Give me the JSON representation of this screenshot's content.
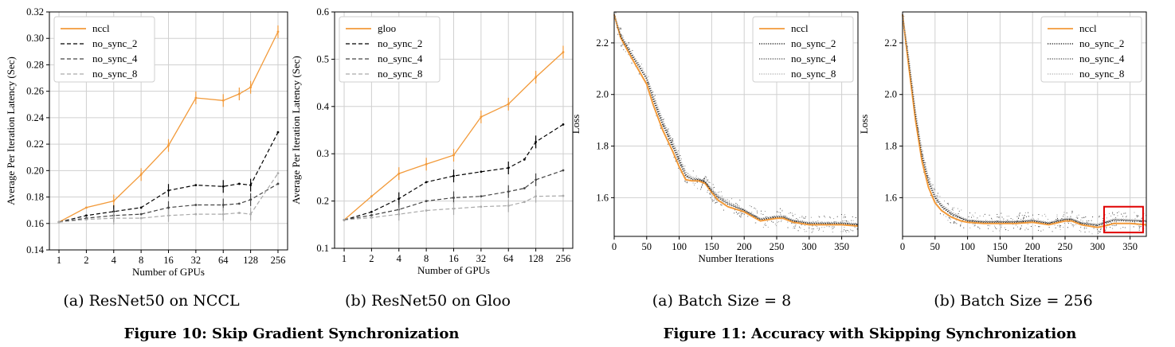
{
  "figure10": {
    "caption": "Figure 10: Skip Gradient Synchronization"
  },
  "figure11": {
    "caption": "Figure 11: Accuracy with Skipping Synchronization"
  },
  "colors": {
    "orange": "#f29a3a",
    "black": "#000000",
    "dark_gray": "#444444",
    "light_gray": "#aaaaaa",
    "highlight": "#e00000"
  },
  "chart_data": [
    {
      "id": "p1",
      "type": "line",
      "subtitle": "(a) ResNet50 on NCCL",
      "xlabel": "Number of GPUs",
      "ylabel": "Average Per Iteration Latency (Sec)",
      "x_scale": "log2",
      "xticks": [
        "1",
        "2",
        "4",
        "8",
        "16",
        "32",
        "64",
        "128",
        "256"
      ],
      "ylim": [
        0.14,
        0.32
      ],
      "yticks": [
        "0.14",
        "0.16",
        "0.18",
        "0.20",
        "0.22",
        "0.24",
        "0.26",
        "0.28",
        "0.30",
        "0.32"
      ],
      "legend_position": "top-left",
      "grid": true,
      "series": [
        {
          "name": "nccl",
          "style": "solid",
          "color": "#f29a3a",
          "x": [
            1,
            2,
            4,
            8,
            16,
            32,
            64,
            96,
            128,
            256
          ],
          "y": [
            0.161,
            0.172,
            0.177,
            0.197,
            0.219,
            0.255,
            0.253,
            0.258,
            0.263,
            0.305
          ]
        },
        {
          "name": "no_sync_2",
          "style": "dashed",
          "color": "#000000",
          "x": [
            1,
            2,
            4,
            8,
            16,
            32,
            64,
            96,
            128,
            256
          ],
          "y": [
            0.161,
            0.166,
            0.169,
            0.172,
            0.185,
            0.189,
            0.188,
            0.19,
            0.189,
            0.229
          ]
        },
        {
          "name": "no_sync_4",
          "style": "dashed",
          "color": "#444444",
          "x": [
            1,
            2,
            4,
            8,
            16,
            32,
            64,
            96,
            128,
            256
          ],
          "y": [
            0.161,
            0.164,
            0.166,
            0.167,
            0.172,
            0.174,
            0.174,
            0.175,
            0.178,
            0.19
          ]
        },
        {
          "name": "no_sync_8",
          "style": "dashed",
          "color": "#aaaaaa",
          "x": [
            1,
            2,
            4,
            8,
            16,
            32,
            64,
            96,
            128,
            256
          ],
          "y": [
            0.161,
            0.163,
            0.164,
            0.164,
            0.166,
            0.167,
            0.167,
            0.168,
            0.167,
            0.198
          ]
        }
      ]
    },
    {
      "id": "p2",
      "type": "line",
      "subtitle": "(b) ResNet50 on Gloo",
      "xlabel": "Number of GPUs",
      "ylabel": "Average Per Iteration Latency (Sec)",
      "x_scale": "log2",
      "xticks": [
        "1",
        "2",
        "4",
        "8",
        "16",
        "32",
        "64",
        "128",
        "256"
      ],
      "ylim": [
        0.1,
        0.6
      ],
      "yticks": [
        "0.1",
        "0.2",
        "0.3",
        "0.4",
        "0.5",
        "0.6"
      ],
      "legend_position": "top-left",
      "grid": true,
      "series": [
        {
          "name": "gloo",
          "style": "solid",
          "color": "#f29a3a",
          "x": [
            1,
            2,
            4,
            8,
            16,
            32,
            64,
            128,
            256
          ],
          "y": [
            0.16,
            0.21,
            0.258,
            0.278,
            0.297,
            0.378,
            0.405,
            0.462,
            0.515
          ]
        },
        {
          "name": "no_sync_2",
          "style": "dashed",
          "color": "#000000",
          "x": [
            1,
            2,
            4,
            8,
            16,
            32,
            64,
            96,
            128,
            256
          ],
          "y": [
            0.16,
            0.177,
            0.205,
            0.24,
            0.253,
            0.262,
            0.27,
            0.288,
            0.325,
            0.362
          ]
        },
        {
          "name": "no_sync_4",
          "style": "dashed",
          "color": "#444444",
          "x": [
            1,
            2,
            4,
            8,
            16,
            32,
            64,
            96,
            128,
            256
          ],
          "y": [
            0.16,
            0.17,
            0.182,
            0.2,
            0.207,
            0.21,
            0.22,
            0.227,
            0.245,
            0.265
          ]
        },
        {
          "name": "no_sync_8",
          "style": "dashed",
          "color": "#aaaaaa",
          "x": [
            1,
            2,
            4,
            8,
            16,
            32,
            64,
            96,
            128,
            256
          ],
          "y": [
            0.16,
            0.165,
            0.172,
            0.18,
            0.184,
            0.188,
            0.19,
            0.198,
            0.21,
            0.211
          ]
        }
      ]
    },
    {
      "id": "p3",
      "type": "line",
      "subtitle": "(a) Batch Size = 8",
      "xlabel": "Number Iterations",
      "ylabel": "Loss",
      "xlim": [
        0,
        375
      ],
      "xticks": [
        "0",
        "50",
        "100",
        "150",
        "200",
        "250",
        "300",
        "350"
      ],
      "ylim": [
        1.45,
        2.32
      ],
      "yticks": [
        "1.6",
        "1.8",
        "2.0",
        "2.2"
      ],
      "legend_position": "top-right",
      "grid": true,
      "series": [
        {
          "name": "nccl",
          "style": "solid",
          "color": "#f29a3a",
          "x": [
            0,
            10,
            25,
            50,
            60,
            75,
            90,
            100,
            110,
            120,
            130,
            140,
            150,
            160,
            175,
            200,
            225,
            250,
            260,
            275,
            300,
            325,
            350,
            375
          ],
          "y": [
            2.31,
            2.22,
            2.15,
            2.04,
            1.96,
            1.86,
            1.78,
            1.72,
            1.67,
            1.665,
            1.665,
            1.655,
            1.62,
            1.59,
            1.565,
            1.545,
            1.51,
            1.52,
            1.52,
            1.505,
            1.495,
            1.495,
            1.495,
            1.49
          ]
        },
        {
          "name": "no_sync_2",
          "style": "dotted",
          "color": "#000000",
          "x": [
            0,
            10,
            25,
            50,
            60,
            75,
            90,
            100,
            110,
            120,
            130,
            140,
            150,
            160,
            175,
            200,
            225,
            250,
            260,
            275,
            300,
            325,
            350,
            375
          ],
          "y": [
            2.31,
            2.225,
            2.16,
            2.06,
            1.98,
            1.88,
            1.8,
            1.74,
            1.685,
            1.67,
            1.67,
            1.66,
            1.625,
            1.6,
            1.575,
            1.55,
            1.515,
            1.525,
            1.525,
            1.51,
            1.5,
            1.5,
            1.5,
            1.495
          ]
        },
        {
          "name": "no_sync_4",
          "style": "dotted",
          "color": "#444444",
          "x": [
            0,
            10,
            25,
            50,
            60,
            75,
            90,
            100,
            110,
            120,
            130,
            140,
            150,
            160,
            175,
            200,
            225,
            250,
            260,
            275,
            300,
            325,
            350,
            375
          ],
          "y": [
            2.31,
            2.23,
            2.165,
            2.065,
            1.99,
            1.89,
            1.81,
            1.75,
            1.69,
            1.675,
            1.672,
            1.662,
            1.63,
            1.605,
            1.58,
            1.552,
            1.518,
            1.528,
            1.527,
            1.512,
            1.502,
            1.502,
            1.502,
            1.497
          ]
        },
        {
          "name": "no_sync_8",
          "style": "dotted",
          "color": "#aaaaaa",
          "x": [
            0,
            10,
            25,
            50,
            60,
            75,
            90,
            100,
            110,
            120,
            130,
            140,
            150,
            160,
            175,
            200,
            225,
            250,
            260,
            275,
            300,
            325,
            350,
            375
          ],
          "y": [
            2.31,
            2.235,
            2.17,
            2.07,
            2.0,
            1.9,
            1.82,
            1.76,
            1.7,
            1.68,
            1.675,
            1.665,
            1.635,
            1.61,
            1.585,
            1.555,
            1.52,
            1.53,
            1.53,
            1.515,
            1.505,
            1.505,
            1.505,
            1.5
          ]
        }
      ]
    },
    {
      "id": "p4",
      "type": "line",
      "subtitle": "(b) Batch Size = 256",
      "xlabel": "Number Iterations",
      "ylabel": "Loss",
      "xlim": [
        0,
        375
      ],
      "xticks": [
        "0",
        "50",
        "100",
        "150",
        "200",
        "250",
        "300",
        "350"
      ],
      "ylim": [
        1.45,
        2.32
      ],
      "yticks": [
        "1.6",
        "1.8",
        "2.0",
        "2.2"
      ],
      "legend_position": "top-right",
      "grid": true,
      "series": [
        {
          "name": "nccl",
          "style": "solid",
          "color": "#f29a3a",
          "x": [
            0,
            10,
            20,
            30,
            40,
            50,
            60,
            75,
            90,
            100,
            125,
            150,
            175,
            200,
            225,
            250,
            260,
            275,
            300,
            310,
            325,
            350,
            375
          ],
          "y": [
            2.31,
            2.1,
            1.9,
            1.74,
            1.64,
            1.58,
            1.55,
            1.525,
            1.51,
            1.505,
            1.5,
            1.5,
            1.5,
            1.505,
            1.495,
            1.51,
            1.51,
            1.495,
            1.485,
            1.49,
            1.5,
            1.5,
            1.495
          ]
        },
        {
          "name": "no_sync_2",
          "style": "dotted",
          "color": "#000000",
          "x": [
            0,
            10,
            20,
            30,
            40,
            50,
            60,
            75,
            90,
            100,
            125,
            150,
            175,
            200,
            225,
            250,
            260,
            275,
            300,
            310,
            325,
            350,
            375
          ],
          "y": [
            2.31,
            2.12,
            1.92,
            1.76,
            1.66,
            1.6,
            1.565,
            1.535,
            1.52,
            1.51,
            1.505,
            1.505,
            1.505,
            1.51,
            1.5,
            1.515,
            1.515,
            1.5,
            1.492,
            1.5,
            1.512,
            1.51,
            1.508
          ]
        },
        {
          "name": "no_sync_4",
          "style": "dotted",
          "color": "#444444",
          "x": [
            0,
            10,
            20,
            30,
            40,
            50,
            60,
            75,
            90,
            100,
            125,
            150,
            175,
            200,
            225,
            250,
            260,
            275,
            300,
            310,
            325,
            350,
            375
          ],
          "y": [
            2.31,
            2.13,
            1.93,
            1.77,
            1.67,
            1.605,
            1.57,
            1.54,
            1.522,
            1.512,
            1.507,
            1.507,
            1.507,
            1.512,
            1.502,
            1.517,
            1.517,
            1.502,
            1.495,
            1.503,
            1.515,
            1.513,
            1.51
          ]
        },
        {
          "name": "no_sync_8",
          "style": "dotted",
          "color": "#aaaaaa",
          "x": [
            0,
            10,
            20,
            30,
            40,
            50,
            60,
            75,
            90,
            100,
            125,
            150,
            175,
            200,
            225,
            250,
            260,
            275,
            300,
            310,
            325,
            350,
            375
          ],
          "y": [
            2.31,
            2.14,
            1.94,
            1.78,
            1.68,
            1.61,
            1.575,
            1.545,
            1.525,
            1.515,
            1.51,
            1.51,
            1.51,
            1.515,
            1.505,
            1.52,
            1.52,
            1.505,
            1.498,
            1.506,
            1.518,
            1.516,
            1.512
          ]
        }
      ],
      "highlight": {
        "x0": 310,
        "x1": 370,
        "y0": 1.465,
        "y1": 1.565,
        "color": "#e00000"
      }
    }
  ]
}
